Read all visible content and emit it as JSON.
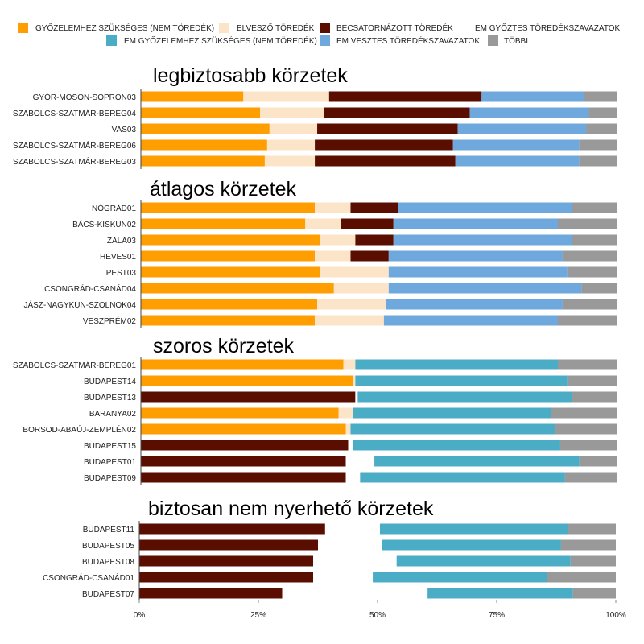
{
  "chart_data": {
    "type": "bar",
    "orientation": "horizontal",
    "stacked": true,
    "colors": {
      "needed": "#FF9E00",
      "wasted": "#FCE4C8",
      "channeled": "#5A0E00",
      "em_winner": "#FFFFFF",
      "em_needed": "#4BACC6",
      "em_lost": "#6FA8DC",
      "other": "#999999"
    },
    "legend": [
      {
        "key": "needed",
        "label": "GYŐZELEMHEZ SZÜKSÉGES (NEM TÖREDÉK)"
      },
      {
        "key": "wasted",
        "label": "ELVESZŐ TÖREDÉK"
      },
      {
        "key": "channeled",
        "label": "BECSATORNÁZOTT TÖREDÉK"
      },
      {
        "key": "em_winner",
        "label": "EM GYŐZTES TÖREDÉKSZAVAZATOK"
      },
      {
        "key": "em_needed",
        "label": "EM GYŐZELEMHEZ SZÜKSÉGES (NEM TÖREDÉK)"
      },
      {
        "key": "em_lost",
        "label": "EM VESZTES TÖREDÉKSZAVAZATOK"
      },
      {
        "key": "other",
        "label": "TÖBBI"
      }
    ],
    "x_ticks": [
      "0%",
      "25%",
      "50%",
      "75%",
      "100%"
    ],
    "xlim": [
      0,
      100
    ],
    "segment_order": [
      "needed",
      "wasted",
      "channeled",
      "em_winner",
      "em_needed",
      "em_lost",
      "other"
    ],
    "groups": [
      {
        "title": "legbiztosabb körzetek",
        "rows": [
          {
            "label": "GYŐR-MOSON-SOPRON03",
            "values": {
              "needed": 21.5,
              "wasted": 18,
              "channeled": 32,
              "em_lost": 21.5,
              "other": 7
            }
          },
          {
            "label": "SZABOLCS-SZATMÁR-BEREG04",
            "values": {
              "needed": 25,
              "wasted": 13.5,
              "channeled": 30.5,
              "em_lost": 25,
              "other": 6
            }
          },
          {
            "label": "VAS03",
            "values": {
              "needed": 27,
              "wasted": 10,
              "channeled": 29.5,
              "em_lost": 27,
              "other": 6.5
            }
          },
          {
            "label": "SZABOLCS-SZATMÁR-BEREG06",
            "values": {
              "needed": 26.5,
              "wasted": 10,
              "channeled": 29,
              "em_lost": 26.5,
              "other": 8
            }
          },
          {
            "label": "SZABOLCS-SZATMÁR-BEREG03",
            "values": {
              "needed": 26,
              "wasted": 10.5,
              "channeled": 29.5,
              "em_lost": 26,
              "other": 8
            }
          }
        ]
      },
      {
        "title": "átlagos körzetek",
        "rows": [
          {
            "label": "NÓGRÁD01",
            "values": {
              "needed": 36.5,
              "wasted": 7.5,
              "channeled": 10,
              "em_lost": 36.5,
              "other": 9.5
            }
          },
          {
            "label": "BÁCS-KISKUN02",
            "values": {
              "needed": 34.5,
              "wasted": 7.5,
              "channeled": 11,
              "em_lost": 34.5,
              "other": 12.5
            }
          },
          {
            "label": "ZALA03",
            "values": {
              "needed": 37.5,
              "wasted": 7.5,
              "channeled": 8,
              "em_lost": 37.5,
              "other": 9.5
            }
          },
          {
            "label": "HEVES01",
            "values": {
              "needed": 36.5,
              "wasted": 7.5,
              "channeled": 8,
              "em_lost": 36.5,
              "other": 11.5
            }
          },
          {
            "label": "PEST03",
            "values": {
              "needed": 37.5,
              "wasted": 14.5,
              "channeled": 0,
              "em_lost": 37.5,
              "other": 10.5
            }
          },
          {
            "label": "CSONGRÁD-CSANÁD04",
            "values": {
              "needed": 40.5,
              "wasted": 11.5,
              "channeled": 0,
              "em_lost": 40.5,
              "other": 7.5
            }
          },
          {
            "label": "JÁSZ-NAGYKUN-SZOLNOK04",
            "values": {
              "needed": 37,
              "wasted": 14.5,
              "channeled": 0,
              "em_lost": 37,
              "other": 11.5
            }
          },
          {
            "label": "VESZPRÉM02",
            "values": {
              "needed": 36.5,
              "wasted": 14.5,
              "channeled": 0,
              "em_lost": 36.5,
              "other": 12.5
            }
          }
        ]
      },
      {
        "title": "szoros körzetek",
        "rows": [
          {
            "label": "SZABOLCS-SZATMÁR-BEREG01",
            "values": {
              "needed": 42.5,
              "wasted": 2.5,
              "em_needed": 42.5,
              "other": 12.5
            }
          },
          {
            "label": "BUDAPEST14",
            "values": {
              "needed": 44.5,
              "wasted": 0.5,
              "em_needed": 44.5,
              "other": 10.5
            }
          },
          {
            "label": "BUDAPEST13",
            "values": {
              "channeled": 45,
              "em_winner": 0.5,
              "em_needed": 45,
              "other": 9.5
            }
          },
          {
            "label": "BARANYA02",
            "values": {
              "needed": 41.5,
              "wasted": 3,
              "em_needed": 41.5,
              "other": 14
            }
          },
          {
            "label": "BORSOD-ABAÚJ-ZEMPLÉN02",
            "values": {
              "needed": 43,
              "wasted": 1,
              "em_needed": 43,
              "other": 13
            }
          },
          {
            "label": "BUDAPEST15",
            "values": {
              "channeled": 43.5,
              "em_winner": 1,
              "em_needed": 43.5,
              "other": 12
            }
          },
          {
            "label": "BUDAPEST01",
            "values": {
              "channeled": 43,
              "em_winner": 6,
              "em_needed": 43,
              "other": 8
            }
          },
          {
            "label": "BUDAPEST09",
            "values": {
              "channeled": 43,
              "em_winner": 3,
              "em_needed": 43,
              "other": 11
            }
          }
        ]
      },
      {
        "title": "biztosan nem nyerhető körzetek",
        "rows": [
          {
            "label": "BUDAPEST11",
            "values": {
              "channeled": 39,
              "em_winner": 11.5,
              "em_needed": 39.5,
              "other": 10
            }
          },
          {
            "label": "BUDAPEST05",
            "values": {
              "channeled": 37.5,
              "em_winner": 13.5,
              "em_needed": 37.5,
              "other": 11.5
            }
          },
          {
            "label": "BUDAPEST08",
            "values": {
              "channeled": 36.5,
              "em_winner": 17.5,
              "em_needed": 36.5,
              "other": 9.5
            }
          },
          {
            "label": "CSONGRÁD-CSANÁD01",
            "values": {
              "channeled": 36.5,
              "em_winner": 12.5,
              "em_needed": 36.5,
              "other": 14.5
            }
          },
          {
            "label": "BUDAPEST07",
            "values": {
              "channeled": 30,
              "em_winner": 30.5,
              "em_needed": 30.5,
              "other": 9
            }
          }
        ]
      }
    ]
  }
}
